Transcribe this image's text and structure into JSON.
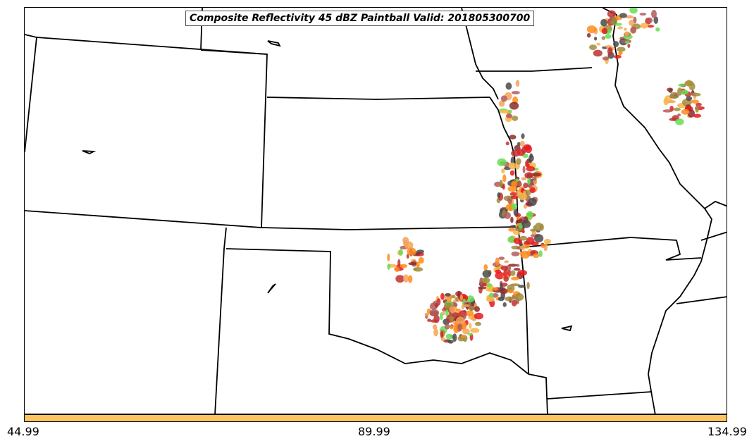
{
  "title": "Composite Reflectivity 45 dBZ Paintball Valid: 201805300700",
  "colorbar": {
    "color": "#fec261",
    "min_label": "44.99",
    "mid_label": "89.99",
    "max_label": "134.99"
  },
  "map": {
    "border_color": "#000000",
    "paintball_colors": [
      "#e41a1c",
      "#f4a259",
      "#66dd55",
      "#8b2a2a",
      "#4a4a4a",
      "#a08b3a",
      "#ff8c1a",
      "#c03030",
      "#f7b548",
      "#b35a5a"
    ]
  }
}
